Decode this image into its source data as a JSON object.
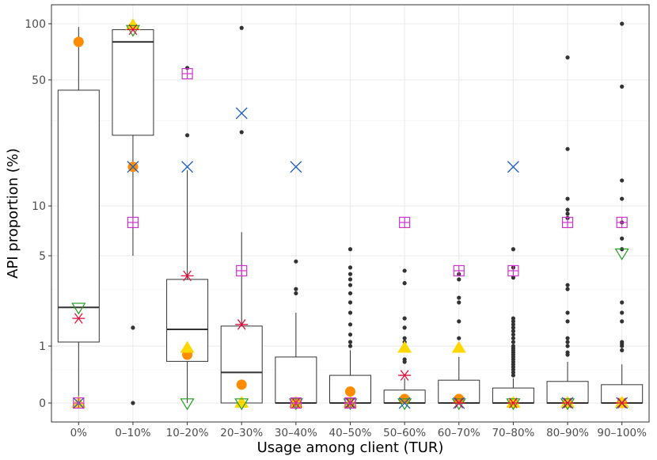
{
  "chart_data": {
    "type": "boxplot",
    "title": "",
    "xlabel": "Usage among client (TUR)",
    "ylabel": "API proportion (%)",
    "y_scale": "pseudo-log",
    "ylim": [
      0,
      100
    ],
    "y_ticks": [
      0,
      1,
      5,
      10,
      50,
      100
    ],
    "y_tick_labels": [
      "0",
      "1",
      "5",
      "10",
      "50",
      "100"
    ],
    "y_minor_ticks": [
      0.5,
      3,
      30
    ],
    "grid": true,
    "categories": [
      "0%",
      "0–10%",
      "10–20%",
      "20–30%",
      "30–40%",
      "40–50%",
      "50–60%",
      "60–70%",
      "70–80%",
      "80–90%",
      "90–100%"
    ],
    "boxes": [
      {
        "category": "0%",
        "whisker_low": 0,
        "q1": 1.1,
        "median": 2.2,
        "q3": 44,
        "whisker_high": 96,
        "outliers": []
      },
      {
        "category": "0–10%",
        "whisker_low": 5,
        "q1": 25,
        "median": 80,
        "q3": 93,
        "whisker_high": 100,
        "outliers": [
          1.5,
          0
        ]
      },
      {
        "category": "10–20%",
        "whisker_low": 0,
        "q1": 0.66,
        "median": 1.45,
        "q3": 3.5,
        "whisker_high": 16,
        "outliers": [
          58,
          25
        ]
      },
      {
        "category": "20–30%",
        "whisker_low": 0,
        "q1": 0,
        "median": 0.45,
        "q3": 1.55,
        "whisker_high": 7,
        "outliers": [
          95,
          26
        ]
      },
      {
        "category": "30–40%",
        "whisker_low": 0,
        "q1": 0,
        "median": 0,
        "q3": 0.75,
        "whisker_high": 2,
        "outliers": [
          4.6,
          3,
          2.8
        ]
      },
      {
        "category": "40–50%",
        "whisker_low": 0,
        "q1": 0,
        "median": 0,
        "q3": 0.4,
        "whisker_high": 0.9,
        "outliers": [
          5.5,
          4.2,
          3.8,
          3.5,
          3.2,
          2.8,
          2.4,
          2,
          1.6,
          1.3,
          1.1,
          1
        ]
      },
      {
        "category": "50–60%",
        "whisker_low": 0,
        "q1": 0,
        "median": 0,
        "q3": 0.17,
        "whisker_high": 0.35,
        "outliers": [
          4,
          3.3,
          1.8,
          1.5,
          1.2,
          1.1,
          0.95,
          0.9,
          0.7,
          0.65
        ]
      },
      {
        "category": "60–70%",
        "whisker_low": 0,
        "q1": 0,
        "median": 0,
        "q3": 0.32,
        "whisker_high": 0.75,
        "outliers": [
          3.8,
          3.5,
          2.6,
          2.4,
          1.7,
          1.2
        ]
      },
      {
        "category": "70–80%",
        "whisker_low": 0,
        "q1": 0,
        "median": 0,
        "q3": 0.2,
        "whisker_high": 0.35,
        "outliers": [
          5.5,
          4.2,
          3.6,
          1.8,
          1.7,
          1.6,
          1.5,
          1.4,
          1.3,
          1.2,
          1.1,
          1.0,
          0.95,
          0.9,
          0.85,
          0.8,
          0.75,
          0.7,
          0.65,
          0.6,
          0.55,
          0.5,
          0.45,
          0.4
        ]
      },
      {
        "category": "80–90%",
        "whisker_low": 0,
        "q1": 0,
        "median": 0,
        "q3": 0.3,
        "whisker_high": 0.65,
        "outliers": [
          66,
          21,
          11,
          9.5,
          9,
          8.5,
          3.2,
          3,
          2,
          1.7,
          1.2,
          1.1,
          1,
          0.85,
          0.8
        ]
      },
      {
        "category": "90–100%",
        "whisker_low": 0,
        "q1": 0,
        "median": 0,
        "q3": 0.25,
        "whisker_high": 0.6,
        "outliers": [
          100,
          46,
          14,
          11,
          8,
          6.4,
          5.5,
          2.4,
          2,
          1.7,
          1.1,
          1.05,
          1,
          0.9
        ]
      }
    ],
    "markers": [
      {
        "symbol": "circle",
        "color": "#FF8C00",
        "points": [
          [
            0,
            80
          ],
          [
            1,
            16.7
          ],
          [
            2,
            0.8
          ],
          [
            3,
            0.25
          ],
          [
            4,
            0
          ],
          [
            5,
            0.15
          ],
          [
            6,
            0.05
          ],
          [
            7,
            0.05
          ],
          [
            8,
            0
          ],
          [
            9,
            0
          ],
          [
            10,
            0
          ]
        ]
      },
      {
        "symbol": "triangle-up",
        "color": "#FFD700",
        "points": [
          [
            0,
            0
          ],
          [
            1,
            98
          ],
          [
            2,
            0.95
          ],
          [
            3,
            0
          ],
          [
            4,
            0
          ],
          [
            5,
            0
          ],
          [
            6,
            0.95
          ],
          [
            7,
            0.95
          ],
          [
            8,
            0
          ],
          [
            9,
            0
          ],
          [
            10,
            0
          ]
        ]
      },
      {
        "symbol": "triangle-down",
        "color": "#1E9E1E",
        "points": [
          [
            0,
            2.2
          ],
          [
            1,
            93
          ],
          [
            2,
            0
          ],
          [
            3,
            0
          ],
          [
            4,
            0
          ],
          [
            5,
            0
          ],
          [
            6,
            0
          ],
          [
            7,
            0
          ],
          [
            8,
            0
          ],
          [
            9,
            0
          ],
          [
            10,
            5.2
          ]
        ]
      },
      {
        "symbol": "x",
        "color": "#2060C0",
        "points": [
          [
            0,
            0
          ],
          [
            1,
            16.7
          ],
          [
            2,
            16.7
          ],
          [
            3,
            33
          ],
          [
            4,
            16.7
          ],
          [
            5,
            0
          ],
          [
            6,
            0
          ],
          [
            7,
            0
          ],
          [
            8,
            16.7
          ],
          [
            9,
            0
          ],
          [
            10,
            0
          ]
        ]
      },
      {
        "symbol": "asterisk",
        "color": "#E0103A",
        "points": [
          [
            0,
            1.8
          ],
          [
            1,
            93
          ],
          [
            2,
            3.7
          ],
          [
            3,
            1.6
          ],
          [
            4,
            0
          ],
          [
            5,
            0
          ],
          [
            6,
            0.4
          ],
          [
            7,
            0
          ],
          [
            8,
            0
          ],
          [
            9,
            0
          ],
          [
            10,
            0
          ]
        ]
      },
      {
        "symbol": "square-plus",
        "color": "#CC33CC",
        "points": [
          [
            0,
            0
          ],
          [
            1,
            8
          ],
          [
            2,
            54
          ],
          [
            3,
            4
          ],
          [
            4,
            0
          ],
          [
            5,
            0
          ],
          [
            6,
            8
          ],
          [
            7,
            4
          ],
          [
            8,
            4
          ],
          [
            9,
            8
          ],
          [
            10,
            8
          ]
        ]
      }
    ]
  }
}
